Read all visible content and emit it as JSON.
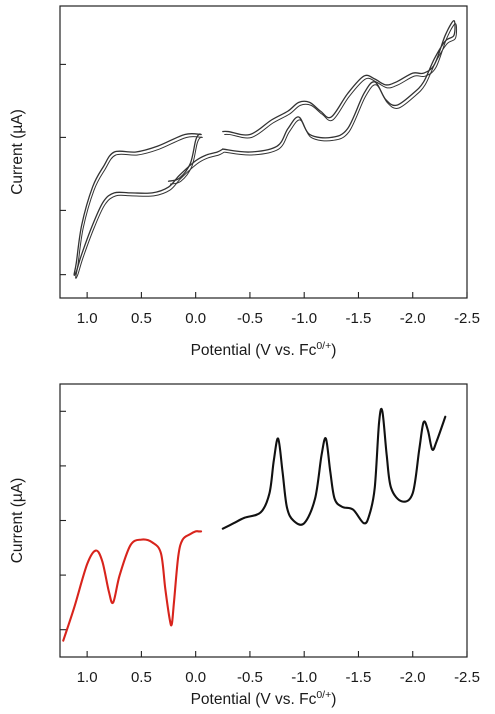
{
  "chart_data": [
    {
      "type": "line",
      "title": "",
      "xlabel": "Potential (V vs. Fc",
      "xlabel_sup": "0/+",
      "xlabel_end": ")",
      "ylabel": "Current (µA)",
      "x_reversed": true,
      "xlim": [
        1.25,
        -2.5
      ],
      "ylim": [
        0,
        100
      ],
      "x_ticks": [
        1.0,
        0.5,
        0.0,
        -0.5,
        -1.0,
        -1.5,
        -2.0,
        -2.5
      ],
      "x_tick_labels": [
        "1.0",
        "0.5",
        "0.0",
        "-0.5",
        "-1.0",
        "-1.5",
        "-2.0",
        "-2.5"
      ],
      "y_ticks": [
        8,
        30,
        55,
        80
      ],
      "y_tick_labels_shown": false,
      "grid": false,
      "series": [
        {
          "color": "#333333",
          "segment": "oxidation-cycle-forward",
          "x": [
            0.25,
            0.15,
            0.05,
            0.0,
            -0.03,
            -0.05
          ],
          "y": [
            40,
            41,
            46,
            54,
            56,
            56
          ]
        },
        {
          "color": "#333333",
          "segment": "oxidation-cycle",
          "x": [
            -0.05,
            0.1,
            0.35,
            0.55,
            0.75,
            0.85,
            0.95,
            1.05,
            1.1,
            1.12,
            1.1,
            1.05,
            0.95,
            0.85,
            0.75,
            0.6,
            0.4,
            0.25,
            0.15,
            0.0,
            -0.1,
            -0.2,
            -0.25
          ],
          "y": [
            56,
            56,
            52,
            50,
            50,
            45,
            38,
            25,
            12,
            8,
            9,
            15,
            25,
            33,
            36,
            36,
            36,
            38,
            42,
            47,
            49,
            50,
            51
          ]
        },
        {
          "color": "#333333",
          "segment": "reduction-cycle",
          "x": [
            -0.25,
            -0.5,
            -0.75,
            -0.85,
            -0.95,
            -1.05,
            -1.25,
            -1.4,
            -1.55,
            -1.65,
            -1.75,
            -1.85,
            -2.0,
            -2.1,
            -2.2,
            -2.3,
            -2.38,
            -2.38,
            -2.3,
            -2.2,
            -2.1,
            -2.0,
            -1.85,
            -1.75,
            -1.65,
            -1.55,
            -1.4,
            -1.25,
            -1.15,
            -1.05,
            -0.95,
            -0.85,
            -0.7,
            -0.5,
            -0.3,
            -0.25
          ],
          "y": [
            51,
            50,
            52,
            58,
            62,
            56,
            55,
            58,
            70,
            74,
            68,
            66,
            70,
            74,
            82,
            88,
            90,
            95,
            90,
            80,
            77,
            77,
            74,
            73,
            75,
            76,
            70,
            62,
            64,
            67,
            67,
            64,
            61,
            56,
            57,
            57
          ]
        }
      ]
    },
    {
      "type": "line",
      "title": "",
      "xlabel": "Potential (V vs. Fc",
      "xlabel_sup": "0/+",
      "xlabel_end": ")",
      "ylabel": "Current (µA)",
      "x_reversed": true,
      "xlim": [
        1.25,
        -2.5
      ],
      "ylim": [
        0,
        100
      ],
      "x_ticks": [
        1.0,
        0.5,
        0.0,
        -0.5,
        -1.0,
        -1.5,
        -2.0,
        -2.5
      ],
      "x_tick_labels": [
        "1.0",
        "0.5",
        "0.0",
        "-0.5",
        "-1.0",
        "-1.5",
        "-2.0",
        "-2.5"
      ],
      "y_ticks": [
        10,
        30,
        50,
        70,
        90
      ],
      "y_tick_labels_shown": false,
      "grid": false,
      "series": [
        {
          "color": "#d8241c",
          "segment": "anodic-scan",
          "x": [
            1.22,
            1.12,
            1.0,
            0.92,
            0.86,
            0.8,
            0.76,
            0.7,
            0.6,
            0.5,
            0.4,
            0.32,
            0.28,
            0.24,
            0.22,
            0.2,
            0.16,
            0.12,
            0.05,
            0.0,
            -0.03,
            -0.05
          ],
          "y": [
            6,
            18,
            34,
            39,
            35,
            24,
            20,
            30,
            41,
            43,
            42,
            38,
            25,
            14,
            12,
            20,
            37,
            43,
            45,
            46,
            46,
            46
          ]
        },
        {
          "color": "#111111",
          "segment": "cathodic-scan",
          "x": [
            -0.25,
            -0.35,
            -0.45,
            -0.6,
            -0.68,
            -0.72,
            -0.76,
            -0.8,
            -0.84,
            -0.9,
            -1.0,
            -1.1,
            -1.16,
            -1.2,
            -1.24,
            -1.28,
            -1.35,
            -1.45,
            -1.55,
            -1.6,
            -1.65,
            -1.69,
            -1.72,
            -1.76,
            -1.8,
            -1.9,
            -2.0,
            -2.06,
            -2.1,
            -2.14,
            -2.18,
            -2.22,
            -2.3
          ],
          "y": [
            47,
            49,
            51,
            53,
            60,
            72,
            80,
            68,
            55,
            50,
            49,
            58,
            74,
            80,
            68,
            58,
            55,
            54,
            49,
            52,
            62,
            86,
            90,
            74,
            62,
            57,
            60,
            76,
            86,
            83,
            76,
            79,
            88
          ]
        }
      ]
    }
  ]
}
